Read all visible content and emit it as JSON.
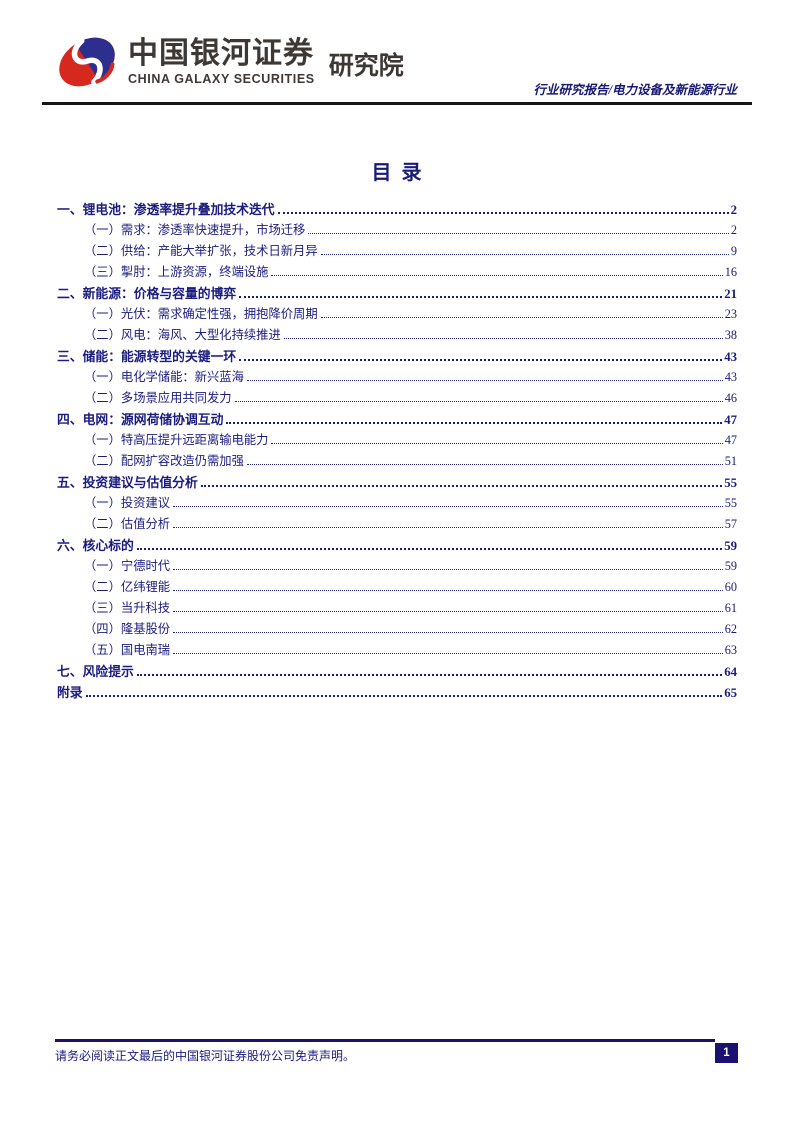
{
  "header": {
    "brand_cn": "中国银河证券",
    "brand_en": "CHINA GALAXY SECURITIES",
    "brand_suffix": "研究院",
    "report_type": "行业研究报告/电力设备及新能源行业"
  },
  "title": "目  录",
  "toc": {
    "entries": [
      {
        "level": 1,
        "label": "一、锂电池：渗透率提升叠加技术迭代",
        "page": "2"
      },
      {
        "level": 2,
        "label": "（一）需求：渗透率快速提升，市场迁移",
        "page": "2"
      },
      {
        "level": 2,
        "label": "（二）供给：产能大举扩张，技术日新月异",
        "page": "9"
      },
      {
        "level": 2,
        "label": "（三）掣肘：上游资源，终端设施",
        "page": "16"
      },
      {
        "level": 1,
        "label": "二、新能源：价格与容量的博弈",
        "page": "21"
      },
      {
        "level": 2,
        "label": "（一）光伏：需求确定性强，拥抱降价周期",
        "page": "23"
      },
      {
        "level": 2,
        "label": "（二）风电：海风、大型化持续推进",
        "page": "38"
      },
      {
        "level": 1,
        "label": "三、储能：能源转型的关键一环",
        "page": "43"
      },
      {
        "level": 2,
        "label": "（一）电化学储能：新兴蓝海",
        "page": "43"
      },
      {
        "level": 2,
        "label": "（二）多场景应用共同发力",
        "page": "46"
      },
      {
        "level": 1,
        "label": "四、电网：源网荷储协调互动",
        "page": "47"
      },
      {
        "level": 2,
        "label": "（一）特高压提升远距离输电能力",
        "page": "47"
      },
      {
        "level": 2,
        "label": "（二）配网扩容改造仍需加强",
        "page": "51"
      },
      {
        "level": 1,
        "label": "五、投资建议与估值分析",
        "page": "55"
      },
      {
        "level": 2,
        "label": "（一）投资建议",
        "page": "55"
      },
      {
        "level": 2,
        "label": "（二）估值分析",
        "page": "57"
      },
      {
        "level": 1,
        "label": "六、核心标的",
        "page": "59"
      },
      {
        "level": 2,
        "label": "（一）宁德时代",
        "page": "59"
      },
      {
        "level": 2,
        "label": "（二）亿纬锂能",
        "page": "60"
      },
      {
        "level": 2,
        "label": "（三）当升科技",
        "page": "61"
      },
      {
        "level": 2,
        "label": "（四）隆基股份",
        "page": "62"
      },
      {
        "level": 2,
        "label": "（五）国电南瑞",
        "page": "63"
      },
      {
        "level": 1,
        "label": "七、风险提示",
        "page": "64"
      },
      {
        "level": 1,
        "label": "附录",
        "page": "65"
      }
    ]
  },
  "footer": {
    "disclaimer": "请务必阅读正文最后的中国银河证券股份公司免责声明。",
    "page_number": "1"
  },
  "colors": {
    "navy_text": "#1b1b80",
    "navy_dark": "#1b1170",
    "logo_red": "#d5281f",
    "logo_blue": "#2d2f8f",
    "brand_gray": "#3e3835",
    "rule_black": "#161616"
  }
}
